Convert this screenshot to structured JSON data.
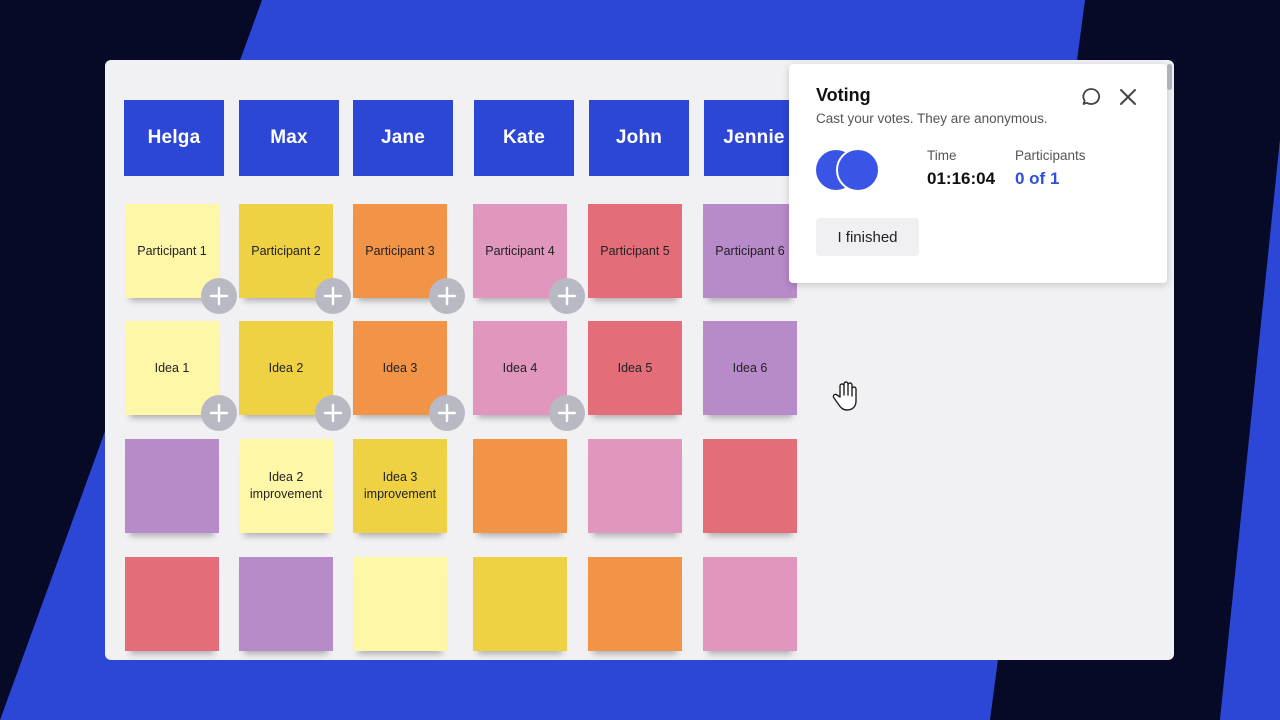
{
  "colors": {
    "background_blue": "#2c46d6",
    "stripe_dark": "#060a26",
    "name_card": "#2c46d6",
    "light_yellow": "#fff7a8",
    "yellow": "#efd144",
    "orange": "#f19448",
    "pink": "#e196bd",
    "red": "#e36d78",
    "purple": "#b78ac9",
    "plus_button": "#b9b9c4"
  },
  "board": {
    "names": [
      "Helga",
      "Max",
      "Jane",
      "Kate",
      "John",
      "Jennie"
    ],
    "rows": [
      [
        {
          "text": "Participant 1",
          "color": "light_yellow"
        },
        {
          "text": "Participant 2",
          "color": "yellow"
        },
        {
          "text": "Participant 3",
          "color": "orange"
        },
        {
          "text": "Participant 4",
          "color": "pink"
        },
        {
          "text": "Participant 5",
          "color": "red"
        },
        {
          "text": "Participant 6",
          "color": "purple"
        }
      ],
      [
        {
          "text": "Idea 1",
          "color": "light_yellow"
        },
        {
          "text": "Idea 2",
          "color": "yellow"
        },
        {
          "text": "Idea 3",
          "color": "orange"
        },
        {
          "text": "Idea 4",
          "color": "pink"
        },
        {
          "text": "Idea 5",
          "color": "red"
        },
        {
          "text": "Idea 6",
          "color": "purple"
        }
      ],
      [
        {
          "text": "",
          "color": "purple"
        },
        {
          "text": "Idea 2 improvement",
          "color": "light_yellow"
        },
        {
          "text": "Idea 3 improvement",
          "color": "yellow"
        },
        {
          "text": "",
          "color": "orange"
        },
        {
          "text": "",
          "color": "pink"
        },
        {
          "text": "",
          "color": "red"
        }
      ],
      [
        {
          "text": "",
          "color": "red"
        },
        {
          "text": "",
          "color": "purple"
        },
        {
          "text": "",
          "color": "light_yellow"
        },
        {
          "text": "",
          "color": "yellow"
        },
        {
          "text": "",
          "color": "orange"
        },
        {
          "text": "",
          "color": "pink"
        }
      ]
    ],
    "vote_buttons_per_row": [
      4,
      4,
      0,
      0
    ],
    "vote_icon": "plus-icon",
    "cursor_icon": "hand-cursor-icon"
  },
  "voting_panel": {
    "title": "Voting",
    "subtitle": "Cast your votes. They are anonymous.",
    "time_label": "Time",
    "time_value": "01:16:04",
    "participants_label": "Participants",
    "participants_value": "0 of 1",
    "finish_button": "I finished",
    "comment_icon": "comment-icon",
    "close_icon": "close-icon",
    "avatar_icon": "avatar"
  }
}
